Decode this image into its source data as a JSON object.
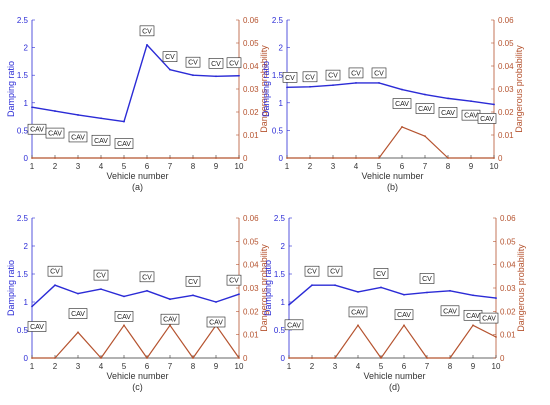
{
  "colors": {
    "damping": "#2b2bd6",
    "danger": "#b5532f",
    "axis": "#333333",
    "box": "#222222"
  },
  "chart_data": [
    {
      "type": "line",
      "caption": "(a)",
      "xlabel": "Vehicle number",
      "ylabel_left": "Damping ratio",
      "ylabel_right": "Dangerous probability",
      "x": [
        1,
        2,
        3,
        4,
        5,
        6,
        7,
        8,
        9,
        10
      ],
      "xlim": [
        1,
        10
      ],
      "ylim_left": [
        0,
        2.5
      ],
      "ylim_right": [
        0,
        0.06
      ],
      "yticks_left": [
        "0",
        "0.5",
        "1",
        "1.5",
        "2",
        "2.5"
      ],
      "yticks_right": [
        "0",
        "0.01",
        "0.02",
        "0.03",
        "0.04",
        "0.05",
        "0.06"
      ],
      "xticks": [
        "1",
        "2",
        "3",
        "4",
        "5",
        "6",
        "7",
        "8",
        "9",
        "10"
      ],
      "series": [
        {
          "axis": "left",
          "values": [
            0.92,
            0.85,
            0.78,
            0.72,
            0.66,
            2.05,
            1.6,
            1.5,
            1.48,
            1.49
          ]
        },
        {
          "axis": "right",
          "values": [
            0,
            0,
            0,
            0,
            0,
            0,
            0,
            0,
            0,
            0
          ]
        }
      ],
      "vehicle_types": [
        "CAV",
        "CAV",
        "CAV",
        "CAV",
        "CAV",
        "CV",
        "CV",
        "CV",
        "CV",
        "CV"
      ]
    },
    {
      "type": "line",
      "caption": "(b)",
      "xlabel": "Vehicle number",
      "ylabel_left": "Damping ratio",
      "ylabel_right": "Dangerous probability",
      "x": [
        1,
        2,
        3,
        4,
        5,
        6,
        7,
        8,
        9,
        10
      ],
      "xlim": [
        1,
        10
      ],
      "ylim_left": [
        0,
        2.5
      ],
      "ylim_right": [
        0,
        0.06
      ],
      "yticks_left": [
        "0",
        "0.5",
        "1",
        "1.5",
        "2",
        "2.5"
      ],
      "yticks_right": [
        "0",
        "0.01",
        "0.02",
        "0.03",
        "0.04",
        "0.05",
        "0.06"
      ],
      "xticks": [
        "1",
        "2",
        "3",
        "4",
        "5",
        "6",
        "7",
        "8",
        "9",
        "10"
      ],
      "series": [
        {
          "axis": "left",
          "values": [
            1.28,
            1.29,
            1.32,
            1.36,
            1.36,
            1.24,
            1.15,
            1.08,
            1.03,
            0.97
          ]
        },
        {
          "axis": "right",
          "values": [
            0,
            0,
            0,
            0,
            0,
            0.0135,
            0.0095,
            0,
            0,
            0
          ]
        }
      ],
      "vehicle_types": [
        "CV",
        "CV",
        "CV",
        "CV",
        "CV",
        "CAV",
        "CAV",
        "CAV",
        "CAV",
        "CAV"
      ]
    },
    {
      "type": "line",
      "caption": "(c)",
      "xlabel": "Vehicle number",
      "ylabel_left": "Damping ratio",
      "ylabel_right": "Dangerous probability",
      "x": [
        1,
        2,
        3,
        4,
        5,
        6,
        7,
        8,
        9,
        10
      ],
      "xlim": [
        1,
        10
      ],
      "ylim_left": [
        0,
        2.5
      ],
      "ylim_right": [
        0,
        0.06
      ],
      "yticks_left": [
        "0",
        "0.5",
        "1",
        "1.5",
        "2",
        "2.5"
      ],
      "yticks_right": [
        "0",
        "0.01",
        "0.02",
        "0.03",
        "0.04",
        "0.05",
        "0.06"
      ],
      "xticks": [
        "1",
        "2",
        "3",
        "4",
        "5",
        "6",
        "7",
        "8",
        "9",
        "10"
      ],
      "series": [
        {
          "axis": "left",
          "values": [
            0.92,
            1.3,
            1.15,
            1.23,
            1.1,
            1.2,
            1.05,
            1.12,
            1.0,
            1.14
          ]
        },
        {
          "axis": "right",
          "values": [
            0,
            0,
            0.011,
            0,
            0.014,
            0,
            0.014,
            0,
            0.014,
            0
          ]
        }
      ],
      "vehicle_types": [
        "CAV",
        "CV",
        "CAV",
        "CV",
        "CAV",
        "CV",
        "CAV",
        "CV",
        "CAV",
        "CV"
      ]
    },
    {
      "type": "line",
      "caption": "(d)",
      "xlabel": "Vehicle number",
      "ylabel_left": "Damping ratio",
      "ylabel_right": "Dangerous probability",
      "x": [
        1,
        2,
        3,
        4,
        5,
        6,
        7,
        8,
        9,
        10
      ],
      "xlim": [
        1,
        10
      ],
      "ylim_left": [
        0,
        2.5
      ],
      "ylim_right": [
        0,
        0.06
      ],
      "yticks_left": [
        "0",
        "0.5",
        "1",
        "1.5",
        "2",
        "2.5"
      ],
      "yticks_right": [
        "0",
        "0.01",
        "0.02",
        "0.03",
        "0.04",
        "0.05",
        "0.06"
      ],
      "xticks": [
        "1",
        "2",
        "3",
        "4",
        "5",
        "6",
        "7",
        "8",
        "9",
        "10"
      ],
      "series": [
        {
          "axis": "left",
          "values": [
            0.95,
            1.3,
            1.3,
            1.18,
            1.26,
            1.13,
            1.17,
            1.2,
            1.12,
            1.07
          ]
        },
        {
          "axis": "right",
          "values": [
            0,
            0,
            0,
            0.014,
            0,
            0.014,
            0,
            0,
            0.014,
            0.009
          ]
        }
      ],
      "vehicle_types": [
        "CAV",
        "CV",
        "CV",
        "CAV",
        "CV",
        "CAV",
        "CV",
        "CAV",
        "CAV",
        "CAV"
      ]
    }
  ]
}
